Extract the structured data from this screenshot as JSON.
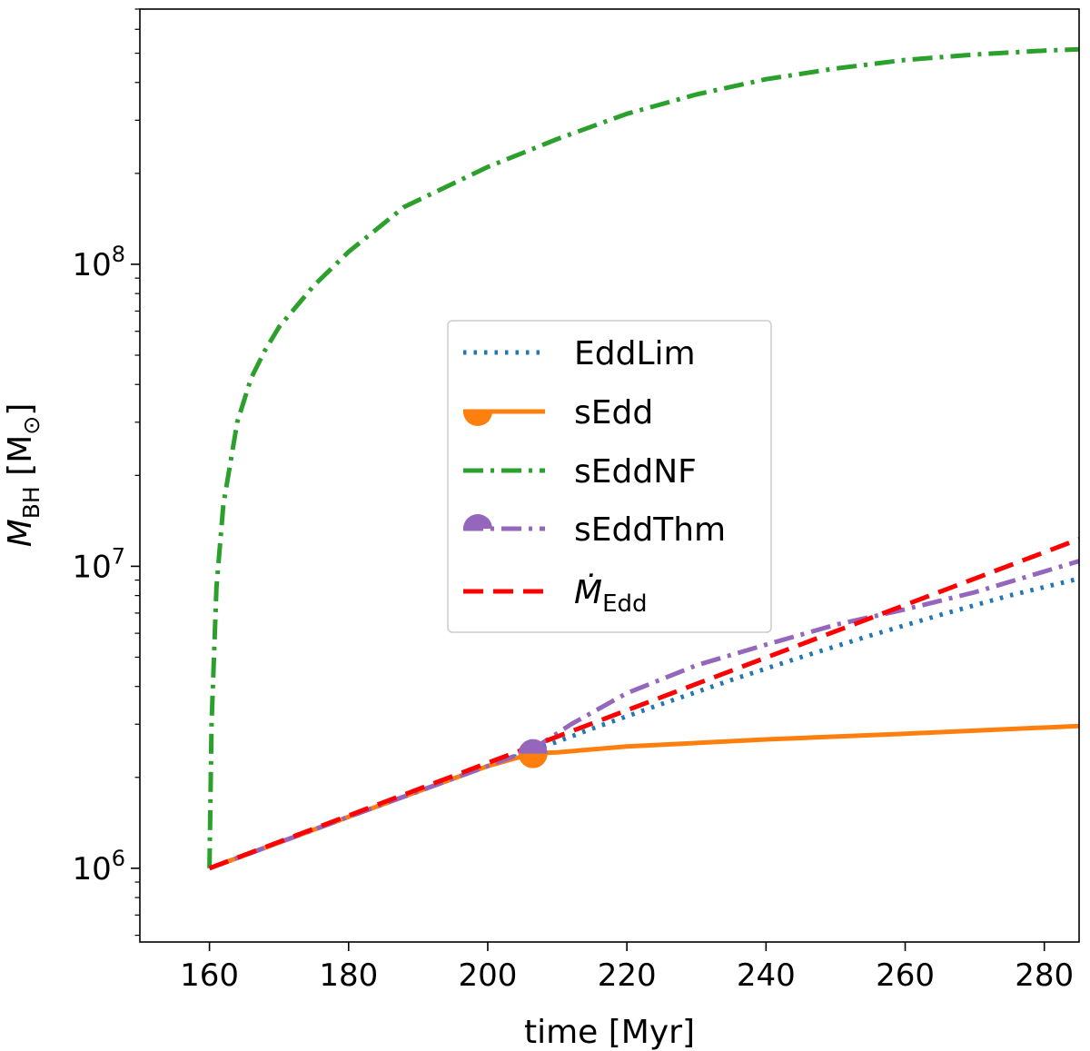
{
  "chart_data": {
    "type": "line",
    "title": "",
    "xlabel": "time [Myr]",
    "ylabel_main": "M",
    "ylabel_sub": "BH",
    "ylabel_unit_open": " [M",
    "ylabel_unit_sub": "⊙",
    "ylabel_unit_close": "]",
    "xlim": [
      150,
      285
    ],
    "ylim": [
      570000,
      700000000
    ],
    "yscale": "log",
    "xticks": [
      160,
      180,
      200,
      220,
      240,
      260,
      280
    ],
    "xtick_labels": [
      "160",
      "180",
      "200",
      "220",
      "240",
      "260",
      "280"
    ],
    "yticks": [
      {
        "value": 1000000,
        "base": "10",
        "exp": "6"
      },
      {
        "value": 10000000,
        "base": "10",
        "exp": "7"
      },
      {
        "value": 100000000,
        "base": "10",
        "exp": "8"
      }
    ],
    "legend_position": "center",
    "series": [
      {
        "name": "EddLim",
        "color": "#1f77b4",
        "style": "dotted",
        "x": [
          160,
          180,
          200,
          206.5,
          215,
          225,
          235,
          245,
          255,
          265,
          275,
          285
        ],
        "y": [
          1000000,
          1480000,
          2180000,
          2450000,
          2900000,
          3500000,
          4200000,
          5000000,
          5900000,
          6900000,
          8000000,
          9100000
        ]
      },
      {
        "name": "sEdd",
        "color": "#ff7f0e",
        "style": "solid",
        "marker": {
          "x": 206.5,
          "y": 2380000,
          "shape": "lower-half-circle"
        },
        "x": [
          160,
          180,
          200,
          206.5,
          210,
          220,
          240,
          260,
          285
        ],
        "y": [
          1000000,
          1480000,
          2180000,
          2400000,
          2420000,
          2530000,
          2670000,
          2790000,
          2960000
        ]
      },
      {
        "name": "sEddNF",
        "color": "#2ca02c",
        "style": "dashdot",
        "x": [
          160,
          160.3,
          161,
          162,
          164,
          166,
          168,
          170,
          175,
          180,
          188,
          200,
          210,
          220,
          230,
          240,
          250,
          260,
          270,
          280,
          285
        ],
        "y": [
          1000000,
          3000000,
          8500000,
          16000000,
          30000000,
          42000000,
          52000000,
          62000000,
          85000000,
          110000000,
          155000000,
          210000000,
          260000000,
          315000000,
          365000000,
          410000000,
          445000000,
          475000000,
          495000000,
          510000000,
          515000000
        ]
      },
      {
        "name": "sEddThm",
        "color": "#9467bd",
        "style": "dashdot",
        "marker": {
          "x": 206.5,
          "y": 2480000,
          "shape": "upper-half-circle"
        },
        "x": [
          160,
          180,
          200,
          206.5,
          212,
          220,
          230,
          240,
          250,
          260,
          270,
          285
        ],
        "y": [
          1000000,
          1480000,
          2180000,
          2480000,
          3000000,
          3800000,
          4700000,
          5500000,
          6400000,
          7200000,
          8200000,
          10400000
        ]
      },
      {
        "name": "Ṁ",
        "name_sub": "Edd",
        "color": "#ff0000",
        "style": "dashed",
        "x": [
          160,
          285
        ],
        "y": [
          1000000,
          12300000
        ]
      }
    ]
  }
}
